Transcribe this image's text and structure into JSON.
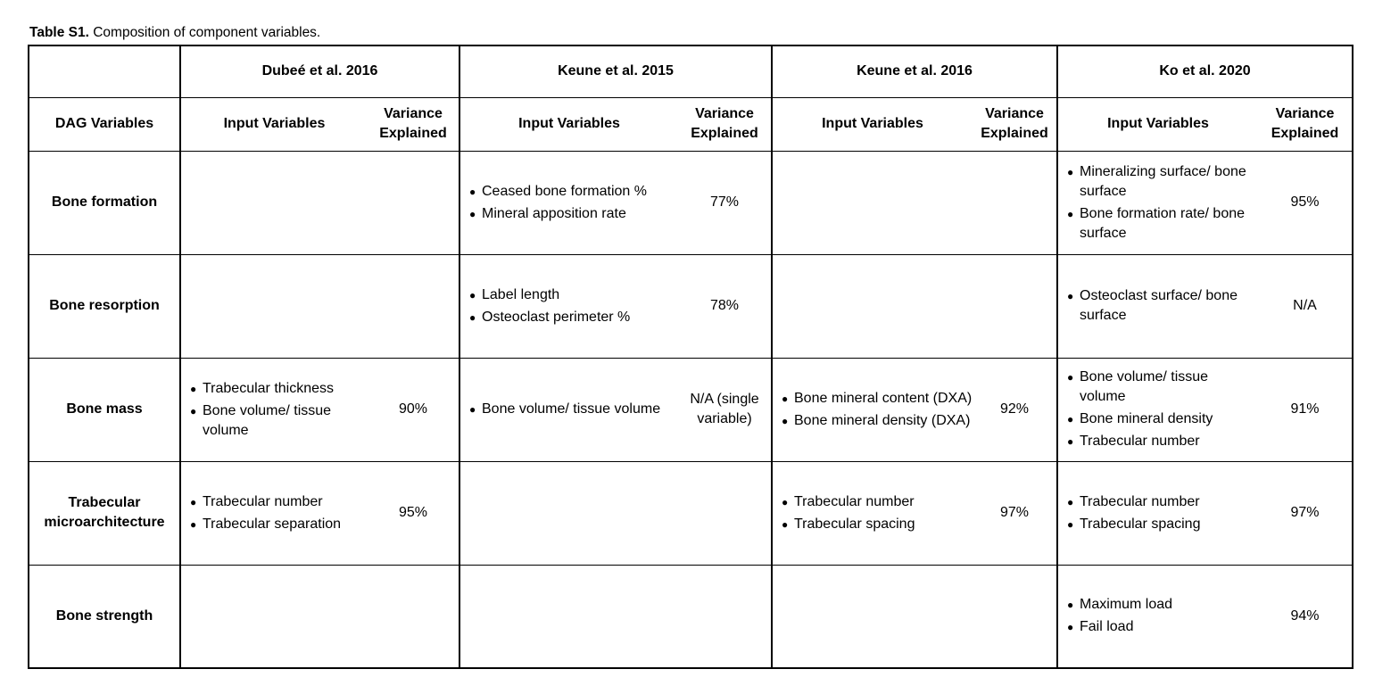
{
  "caption": {
    "label": "Table S1.",
    "text": "Composition of component variables."
  },
  "studies": [
    "Dubeé et al. 2016",
    "Keune et al. 2015",
    "Keune et al. 2016",
    "Ko et al. 2020"
  ],
  "headers": {
    "dag": "DAG Variables",
    "input": "Input Variables",
    "variance_line1": "Variance",
    "variance_line2": "Explained"
  },
  "rows": [
    {
      "label": "Bone formation",
      "cells": [
        {
          "inputs": [],
          "variance": ""
        },
        {
          "inputs": [
            "Ceased bone formation %",
            "Mineral apposition rate"
          ],
          "variance": "77%"
        },
        {
          "inputs": [],
          "variance": ""
        },
        {
          "inputs": [
            "Mineralizing surface/ bone surface",
            "Bone formation rate/ bone surface"
          ],
          "variance": "95%"
        }
      ]
    },
    {
      "label": "Bone resorption",
      "cells": [
        {
          "inputs": [],
          "variance": ""
        },
        {
          "inputs": [
            "Label length",
            "Osteoclast perimeter %"
          ],
          "variance": "78%"
        },
        {
          "inputs": [],
          "variance": ""
        },
        {
          "inputs": [
            "Osteoclast surface/ bone surface"
          ],
          "variance": "N/A"
        }
      ]
    },
    {
      "label": "Bone mass",
      "cells": [
        {
          "inputs": [
            "Trabecular thickness",
            "Bone volume/ tissue volume"
          ],
          "variance": "90%"
        },
        {
          "inputs": [
            "Bone volume/ tissue volume"
          ],
          "variance": "N/A (single variable)"
        },
        {
          "inputs": [
            "Bone mineral content (DXA)",
            "Bone mineral density (DXA)"
          ],
          "variance": "92%"
        },
        {
          "inputs": [
            "Bone volume/ tissue volume",
            "Bone mineral density",
            "Trabecular number"
          ],
          "variance": "91%"
        }
      ]
    },
    {
      "label": "Trabecular microarchitecture",
      "cells": [
        {
          "inputs": [
            "Trabecular number",
            "Trabecular separation"
          ],
          "variance": "95%"
        },
        {
          "inputs": [],
          "variance": ""
        },
        {
          "inputs": [
            "Trabecular number",
            "Trabecular spacing"
          ],
          "variance": "97%"
        },
        {
          "inputs": [
            "Trabecular number",
            "Trabecular spacing"
          ],
          "variance": "97%"
        }
      ]
    },
    {
      "label": "Bone strength",
      "cells": [
        {
          "inputs": [],
          "variance": ""
        },
        {
          "inputs": [],
          "variance": ""
        },
        {
          "inputs": [],
          "variance": ""
        },
        {
          "inputs": [
            "Maximum load",
            "Fail load"
          ],
          "variance": "94%"
        }
      ]
    }
  ]
}
